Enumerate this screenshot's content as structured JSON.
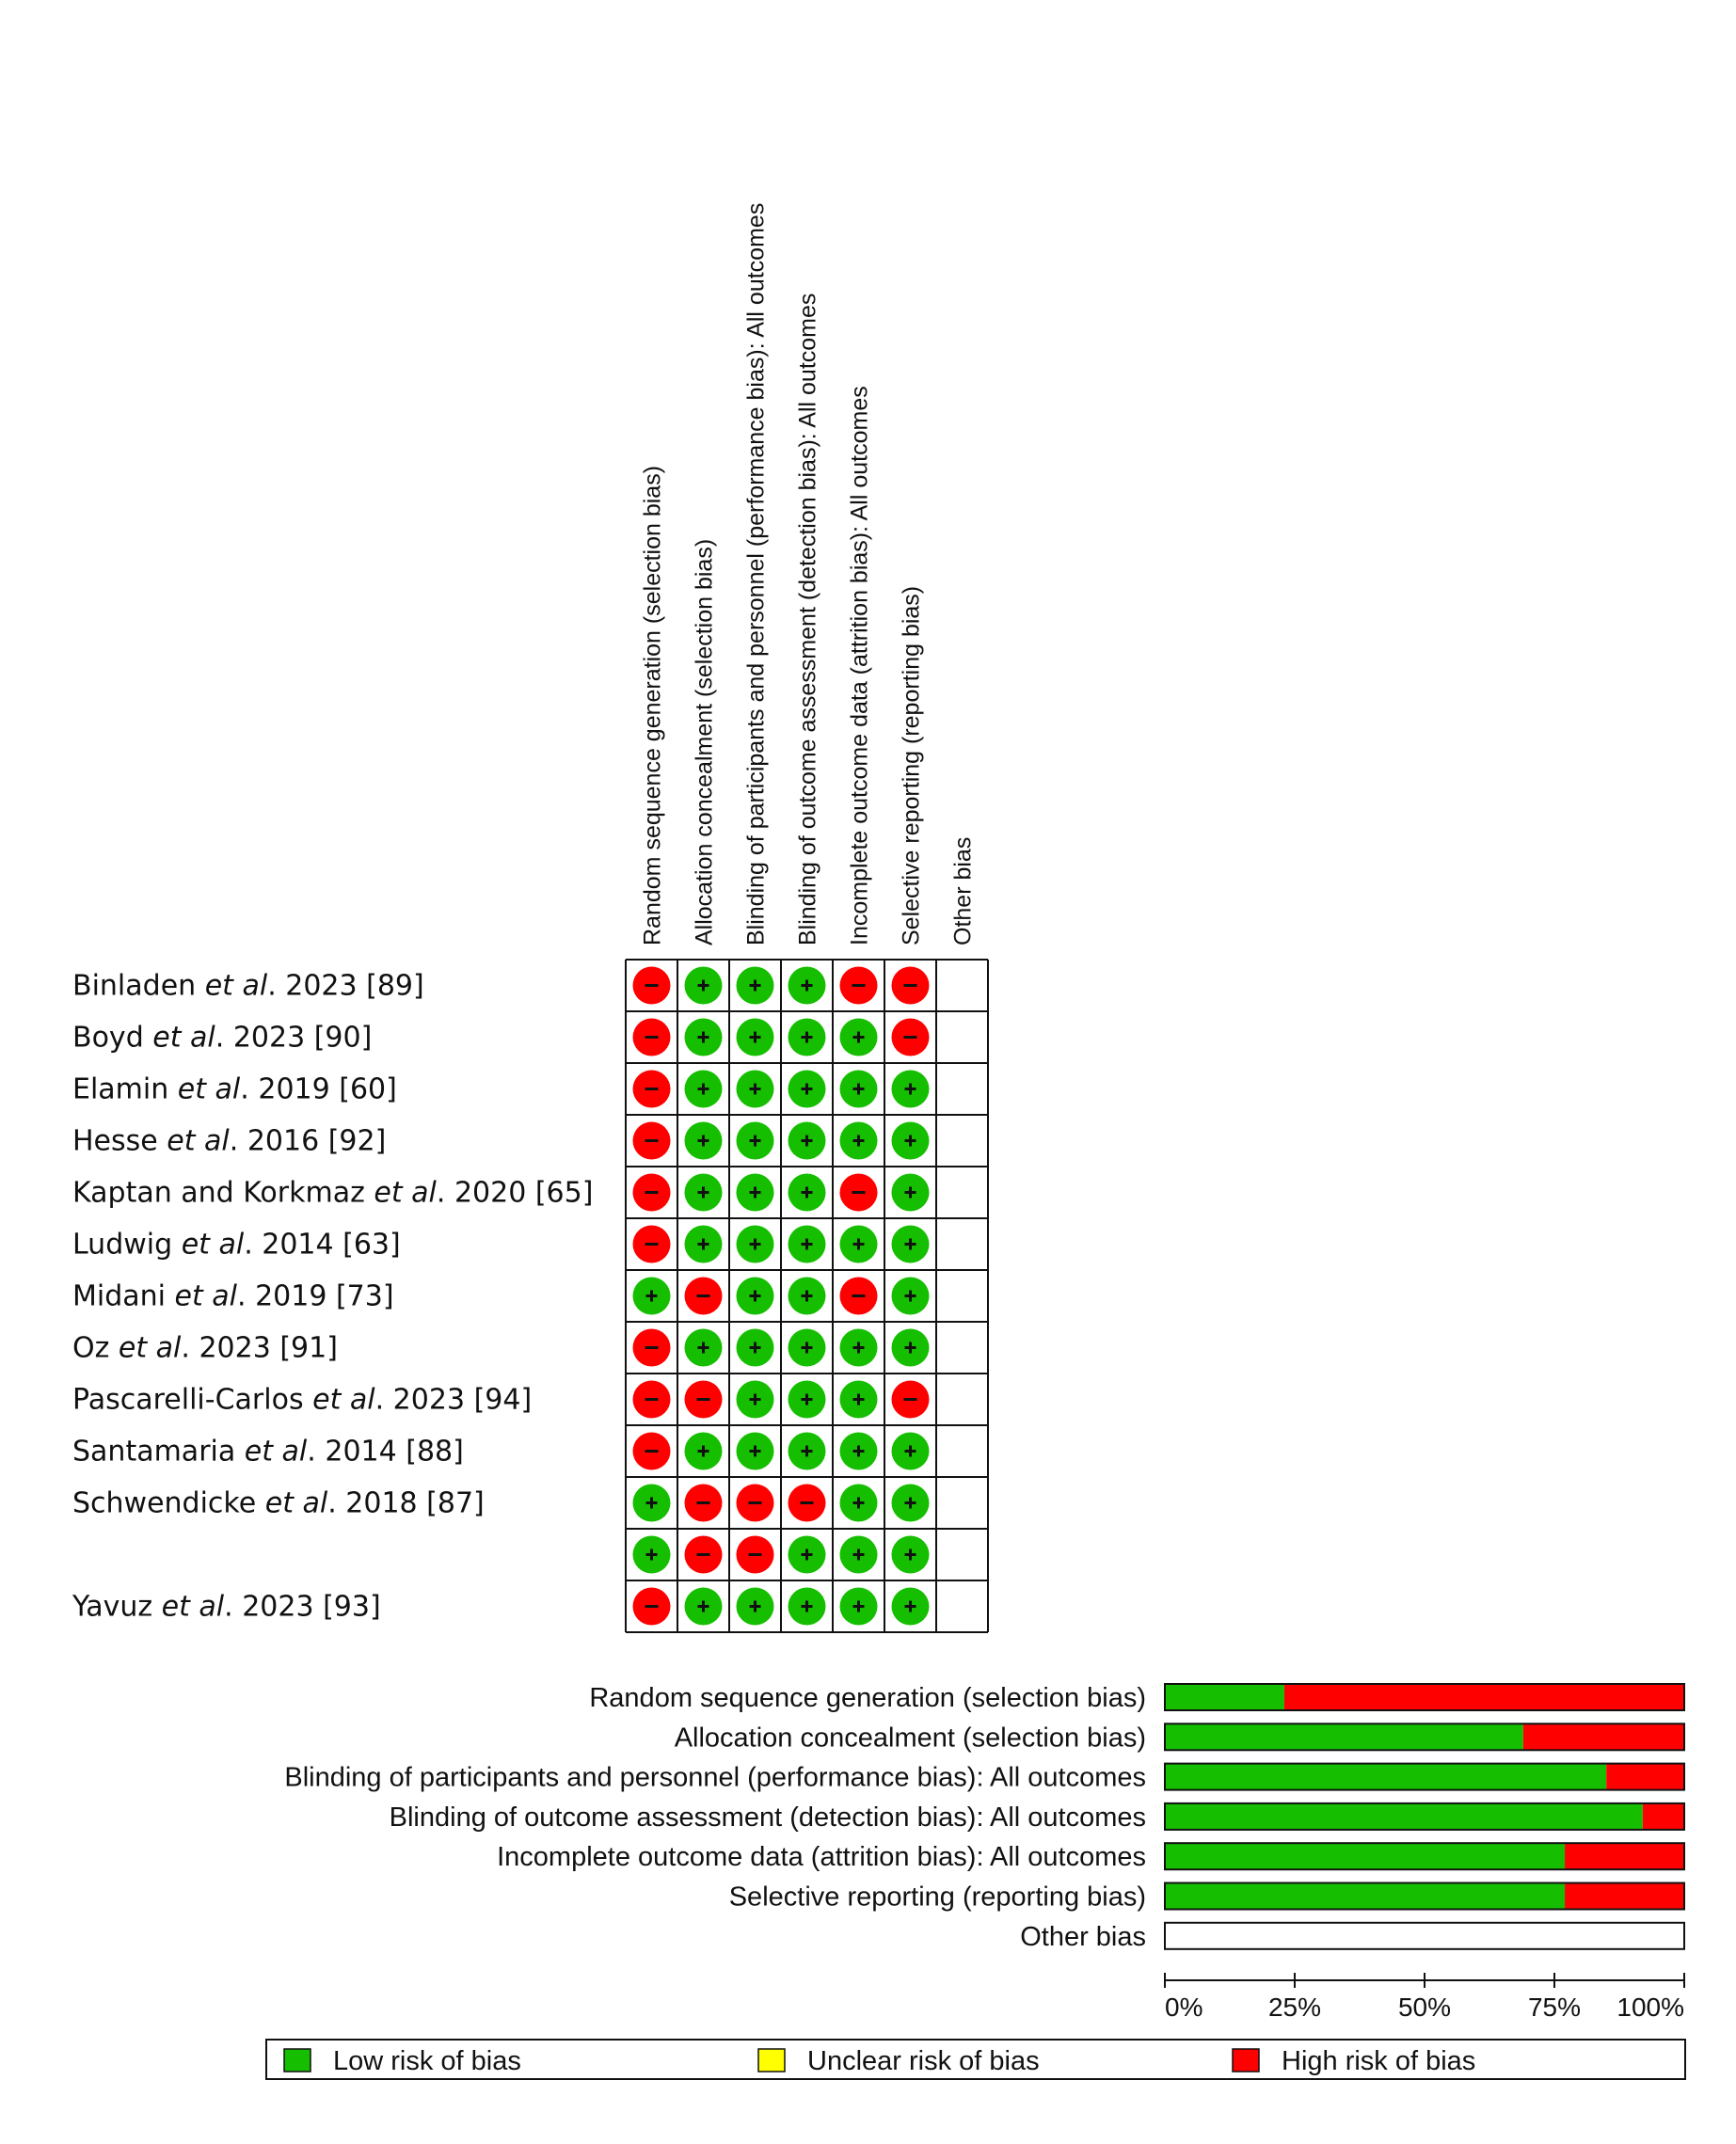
{
  "chart_data": [
    {
      "type": "table",
      "domains": [
        "Random sequence generation (selection bias)",
        "Allocation concealment (selection bias)",
        "Blinding of participants and personnel (performance bias): All outcomes",
        "Blinding of outcome assessment (detection bias): All outcomes",
        "Incomplete outcome data (attrition bias): All outcomes",
        "Selective reporting (reporting bias)",
        "Other bias"
      ],
      "studies": [
        {
          "pre": "Binladen ",
          "etal": "et al",
          "post": ". 2023 [89]",
          "judgements": [
            "high",
            "low",
            "low",
            "low",
            "high",
            "high",
            ""
          ]
        },
        {
          "pre": "Boyd ",
          "etal": "et al",
          "post": ". 2023 [90]",
          "judgements": [
            "high",
            "low",
            "low",
            "low",
            "low",
            "high",
            ""
          ]
        },
        {
          "pre": "Elamin ",
          "etal": "et al",
          "post": ". 2019 [60]",
          "judgements": [
            "high",
            "low",
            "low",
            "low",
            "low",
            "low",
            ""
          ]
        },
        {
          "pre": "Hesse ",
          "etal": "et al",
          "post": ". 2016 [92]",
          "judgements": [
            "high",
            "low",
            "low",
            "low",
            "low",
            "low",
            ""
          ]
        },
        {
          "pre": "Kaptan and Korkmaz ",
          "etal": "et al",
          "post": ". 2020 [65]",
          "judgements": [
            "high",
            "low",
            "low",
            "low",
            "high",
            "low",
            ""
          ]
        },
        {
          "pre": "Ludwig ",
          "etal": "et al",
          "post": ". 2014 [63]",
          "judgements": [
            "high",
            "low",
            "low",
            "low",
            "low",
            "low",
            ""
          ]
        },
        {
          "pre": "Midani ",
          "etal": "et al",
          "post": ". 2019 [73]",
          "judgements": [
            "low",
            "high",
            "low",
            "low",
            "high",
            "low",
            ""
          ]
        },
        {
          "pre": "Oz ",
          "etal": "et al",
          "post": ". 2023 [91]",
          "judgements": [
            "high",
            "low",
            "low",
            "low",
            "low",
            "low",
            ""
          ]
        },
        {
          "pre": "Pascarelli-Carlos ",
          "etal": "et al",
          "post": ". 2023 [94]",
          "judgements": [
            "high",
            "high",
            "low",
            "low",
            "low",
            "high",
            ""
          ]
        },
        {
          "pre": "Santamaria ",
          "etal": "et al",
          "post": ". 2014 [88]",
          "judgements": [
            "high",
            "low",
            "low",
            "low",
            "low",
            "low",
            ""
          ]
        },
        {
          "pre": "Schwendicke ",
          "etal": "et al",
          "post": ". 2018 [87]",
          "judgements": [
            "low",
            "high",
            "high",
            "high",
            "low",
            "low",
            ""
          ]
        },
        {
          "pre": "",
          "etal": "",
          "post": "",
          "judgements": [
            "low",
            "high",
            "high",
            "low",
            "low",
            "low",
            ""
          ]
        },
        {
          "pre": "Yavuz ",
          "etal": "et al",
          "post": ". 2023 [93]",
          "judgements": [
            "high",
            "low",
            "low",
            "low",
            "low",
            "low",
            ""
          ]
        }
      ],
      "symbols": {
        "low": "+",
        "high": "−"
      }
    },
    {
      "type": "bar",
      "orientation": "horizontal",
      "stacked": true,
      "categories": [
        "Random sequence generation (selection bias)",
        "Allocation concealment (selection bias)",
        "Blinding of participants and personnel (performance bias): All outcomes",
        "Blinding of outcome assessment (detection bias): All outcomes",
        "Incomplete outcome data (attrition bias): All outcomes",
        "Selective reporting (reporting bias)",
        "Other bias"
      ],
      "series": [
        {
          "name": "Low risk of bias",
          "color": "#15bf00",
          "values": [
            23,
            69,
            85,
            92,
            77,
            77,
            0
          ]
        },
        {
          "name": "Unclear risk of bias",
          "color": "#ffff00",
          "values": [
            0,
            0,
            0,
            0,
            0,
            0,
            0
          ]
        },
        {
          "name": "High risk of bias",
          "color": "#ff0000",
          "values": [
            77,
            31,
            15,
            8,
            23,
            23,
            0
          ]
        }
      ],
      "xlim": [
        0,
        100
      ],
      "xticks": [
        "0%",
        "25%",
        "50%",
        "75%",
        "100%"
      ],
      "legend_position": "bottom"
    }
  ],
  "colors": {
    "low": "#15bf00",
    "high": "#ff0000",
    "unclear": "#ffff00",
    "grid": "#111111"
  }
}
